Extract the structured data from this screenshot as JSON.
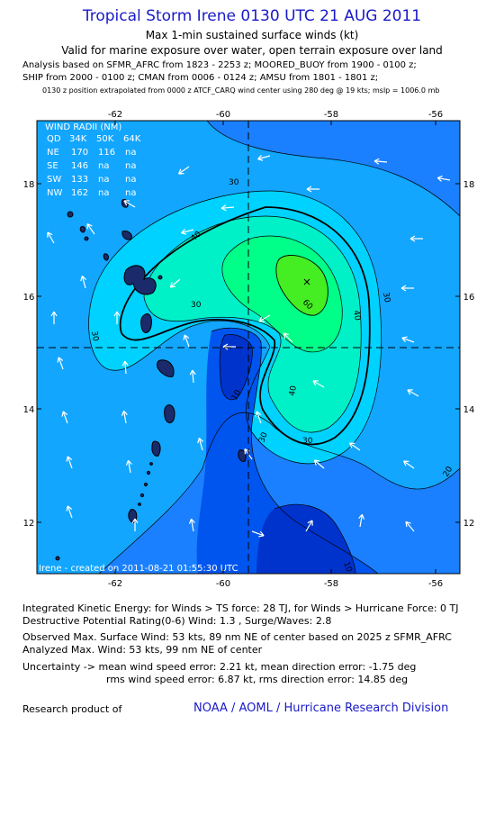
{
  "header": {
    "title": "Tropical Storm Irene 0130 UTC 21 AUG 2011",
    "subtitle": "Max 1-min sustained surface winds (kt)",
    "valid_line": "Valid for marine exposure over water, open terrain exposure over land",
    "analysis_line1": "Analysis based on SFMR_AFRC from 1823 - 2253 z; MOORED_BUOY from 1900 - 0100 z;",
    "analysis_line2": "SHIP from 2000 - 0100 z; CMAN from 0006 - 0124 z; AMSU from 1801 - 1801 z;",
    "position_line": "0130 z position extrapolated from 0000 z ATCF_CARQ wind center using 280 deg @ 19 kts; mslp = 1006.0 mb"
  },
  "map": {
    "x_ticks": [
      "-62",
      "-60",
      "-58",
      "-56"
    ],
    "y_ticks": [
      "18",
      "16",
      "14",
      "12"
    ],
    "contour_labels": [
      "30",
      "40",
      "30",
      "30",
      "40",
      "60",
      "30",
      "40",
      "30",
      "20",
      "30",
      "10",
      "10"
    ],
    "footer_stamp": "Irene - created on 2011-08-21 01:55:30 UTC",
    "wind_radii": {
      "title": "WIND RADII (NM)",
      "header": [
        "QD",
        "34K",
        "50K",
        "64K"
      ],
      "rows": [
        [
          "NE",
          "170",
          "116",
          "na"
        ],
        [
          "SE",
          "146",
          "na",
          "na"
        ],
        [
          "SW",
          "133",
          "na",
          "na"
        ],
        [
          "NW",
          "162",
          "na",
          "na"
        ]
      ]
    },
    "colors": {
      "level_0": "#0033cc",
      "level_10": "#0055ee",
      "level_20": "#1a80ff",
      "level_30": "#12a6ff",
      "level_40": "#00d2ff",
      "level_50": "#00f0c8",
      "level_60": "#00ff88",
      "level_70": "#44ee22"
    }
  },
  "footer": {
    "ike_line": "Integrated Kinetic Energy:  for Winds > TS force: 28 TJ,  for Winds > Hurricane Force: 0 TJ",
    "rating_line": "Destructive Potential Rating(0-6)   Wind: 1.3 , Surge/Waves: 2.8",
    "observed_line": "Observed Max. Surface Wind: 53 kts, 89 nm NE of center based on 2025 z SFMR_AFRC",
    "analyzed_line": "Analyzed Max. Wind: 53 kts, 99 nm NE of center",
    "uncertainty_line1": "Uncertainty -> mean wind speed error: 2.21 kt,   mean direction error:  -1.75 deg",
    "uncertainty_line2": "rms wind speed error: 6.87 kt,   rms direction error: 14.85 deg",
    "research_label": "Research product of",
    "credit": "NOAA / AOML / Hurricane Research Division"
  }
}
